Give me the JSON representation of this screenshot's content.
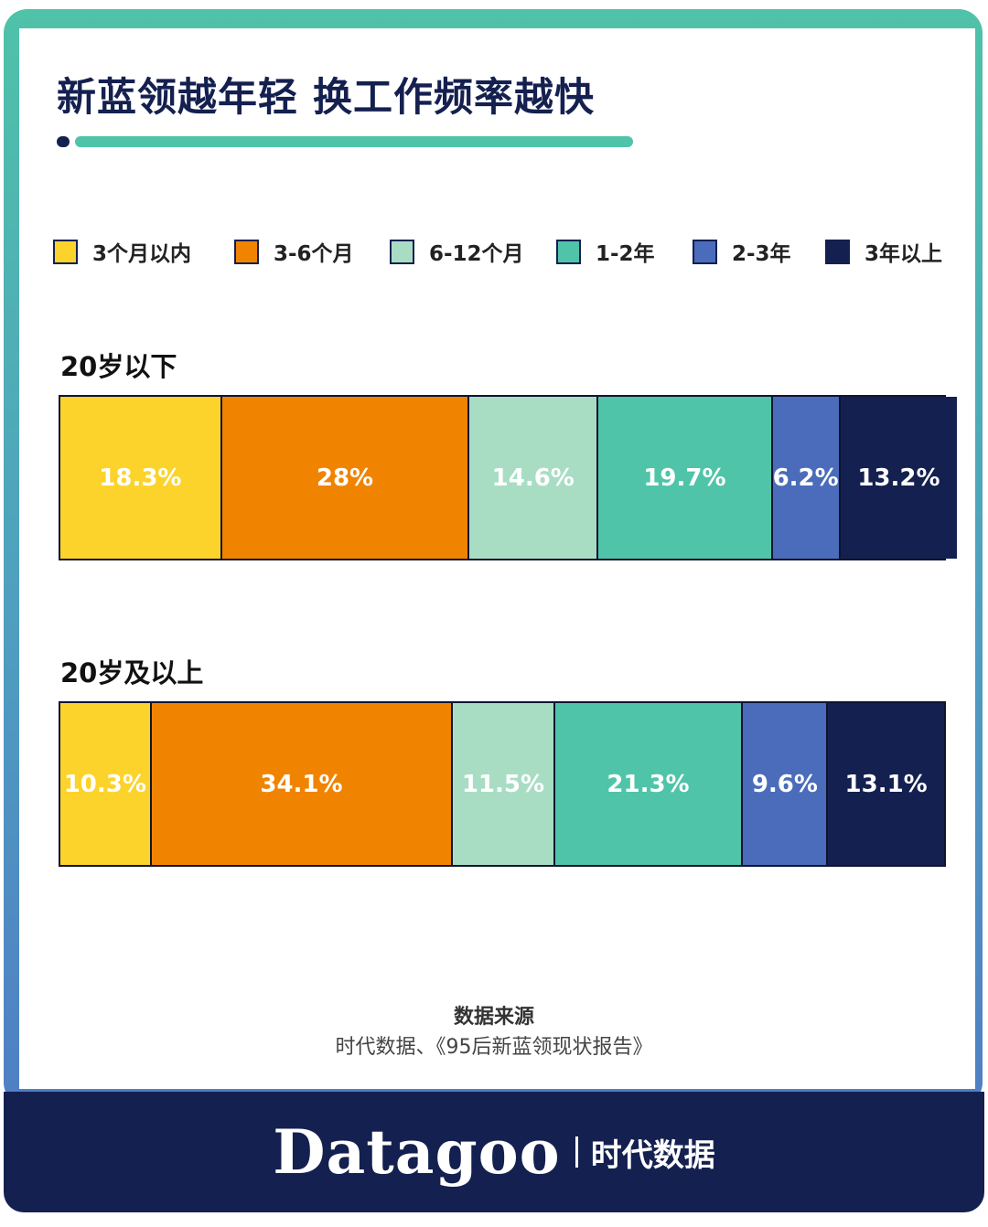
{
  "title": "新蓝领越年轻 换工作频率越快",
  "legend": [
    {
      "label": "3个月以内",
      "color": "#fcd32a"
    },
    {
      "label": "3-6个月",
      "color": "#f08400"
    },
    {
      "label": "6-12个月",
      "color": "#a8ddc4"
    },
    {
      "label": "1-2年",
      "color": "#4fc4a8"
    },
    {
      "label": "2-3年",
      "color": "#4a6cba"
    },
    {
      "label": "3年以上",
      "color": "#14204f"
    }
  ],
  "chart_data": {
    "type": "bar",
    "stacked": true,
    "orientation": "horizontal",
    "normalized": true,
    "title": "新蓝领越年轻 换工作频率越快",
    "legend_position": "top",
    "categories": [
      "20岁以下",
      "20岁及以上"
    ],
    "series": [
      {
        "name": "3个月以内",
        "color": "#fcd32a",
        "values": [
          18.3,
          10.3
        ],
        "labels": [
          "18.3%",
          "10.3%"
        ]
      },
      {
        "name": "3-6个月",
        "color": "#f08400",
        "values": [
          28,
          34.1
        ],
        "labels": [
          "28%",
          "34.1%"
        ]
      },
      {
        "name": "6-12个月",
        "color": "#a8ddc4",
        "values": [
          14.6,
          11.5
        ],
        "labels": [
          "14.6%",
          "11.5%"
        ]
      },
      {
        "name": "1-2年",
        "color": "#4fc4a8",
        "values": [
          19.7,
          21.3
        ],
        "labels": [
          "19.7%",
          "21.3%"
        ]
      },
      {
        "name": "2-3年",
        "color": "#4a6cba",
        "values": [
          6.2,
          9.6
        ],
        "labels": [
          "6.2%",
          "9.6%"
        ]
      },
      {
        "name": "3年以上",
        "color": "#14204f",
        "values": [
          13.2,
          13.1
        ],
        "labels": [
          "13.2%",
          "13.1%"
        ]
      }
    ]
  },
  "source": {
    "title": "数据来源",
    "text": "时代数据、《95后新蓝领现状报告》"
  },
  "footer": {
    "brand": "Datagoo",
    "brand_cn": "时代数据"
  }
}
